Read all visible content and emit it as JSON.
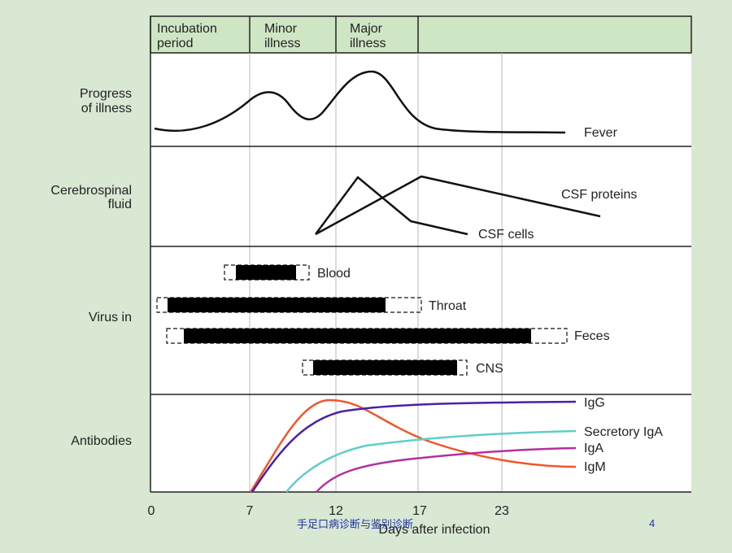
{
  "header": {
    "phase1_line1": "Incubation",
    "phase1_line2": "period",
    "phase2_line1": "Minor",
    "phase2_line2": "illness",
    "phase3_line1": "Major",
    "phase3_line2": "illness"
  },
  "rows": {
    "progress_line1": "Progress",
    "progress_line2": "of illness",
    "csf_line1": "Cerebrospinal",
    "csf_line2": "fluid",
    "virus": "Virus in",
    "antibodies": "Antibodies"
  },
  "curves": {
    "fever": "Fever",
    "csf_proteins": "CSF proteins",
    "csf_cells": "CSF cells"
  },
  "virus_bars": {
    "blood": "Blood",
    "throat": "Throat",
    "feces": "Feces",
    "cns": "CNS"
  },
  "antibody_labels": {
    "igg": "IgG",
    "secretory_iga": "Secretory IgA",
    "iga": "IgA",
    "igm": "IgM"
  },
  "axis": {
    "ticks": [
      "0",
      "7",
      "12",
      "17",
      "23"
    ],
    "label": "Days after infection"
  },
  "colors": {
    "background": "#d8e8d2",
    "panel": "#ffffff",
    "header": "#cfe6c4",
    "igg": "#4b1fa8",
    "secretory_iga": "#5fcfc6",
    "iga": "#b3309e",
    "igm": "#f2552c"
  },
  "footer": {
    "title": "手足口病诊断与鉴别诊断",
    "page": "4"
  }
}
